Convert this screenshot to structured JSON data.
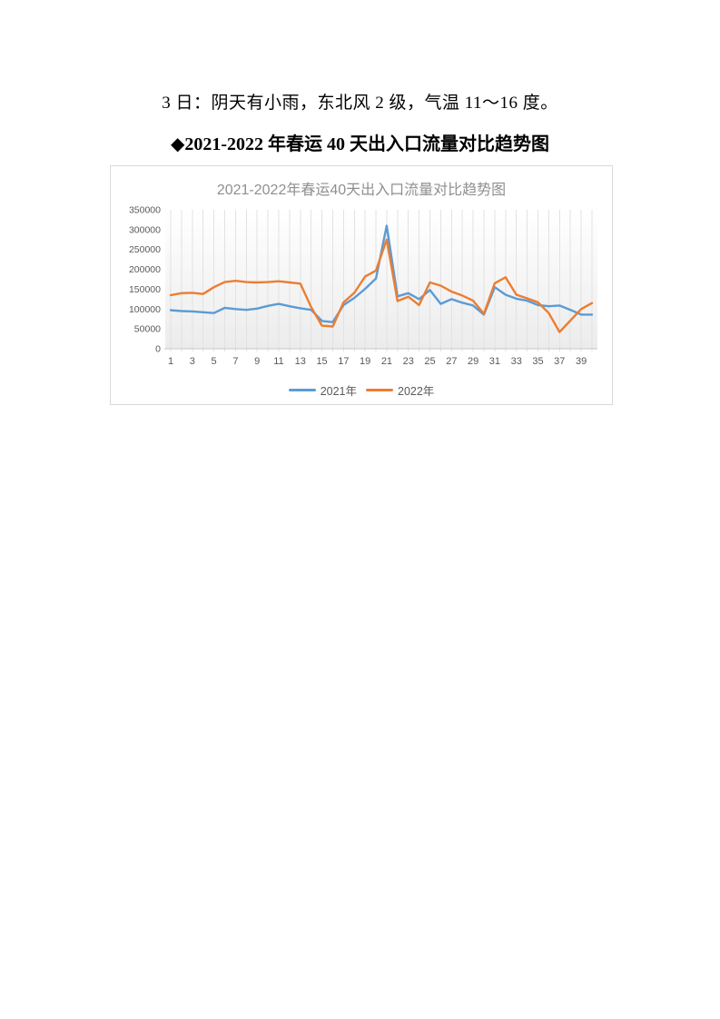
{
  "document": {
    "weather_text": "3 日：阴天有小雨，东北风 2 级，气温 11～16 度。",
    "chart_heading": "◆2021-2022 年春运 40 天出入口流量对比趋势图"
  },
  "chart_data": {
    "type": "line",
    "title": "2021-2022年春运40天出入口流量对比趋势图",
    "xlabel": "",
    "ylabel": "",
    "x": [
      1,
      2,
      3,
      4,
      5,
      6,
      7,
      8,
      9,
      10,
      11,
      12,
      13,
      14,
      15,
      16,
      17,
      18,
      19,
      20,
      21,
      22,
      23,
      24,
      25,
      26,
      27,
      28,
      29,
      30,
      31,
      32,
      33,
      34,
      35,
      36,
      37,
      38,
      39,
      40
    ],
    "x_tick_labels": [
      1,
      3,
      5,
      7,
      9,
      11,
      13,
      15,
      17,
      19,
      21,
      23,
      25,
      27,
      29,
      31,
      33,
      35,
      37,
      39
    ],
    "ylim": [
      0,
      350000
    ],
    "y_ticks": [
      350000,
      300000,
      250000,
      200000,
      150000,
      100000,
      50000,
      0
    ],
    "grid": "vertical",
    "legend_position": "bottom",
    "series": [
      {
        "name": "2021年",
        "color": "#5B9BD5",
        "values": [
          97000,
          95000,
          94000,
          92000,
          90000,
          103000,
          100000,
          98000,
          101000,
          108000,
          113000,
          107000,
          102000,
          98000,
          70000,
          67000,
          110000,
          128000,
          151000,
          177000,
          310000,
          132000,
          140000,
          125000,
          148000,
          113000,
          125000,
          116000,
          109000,
          86000,
          155000,
          136000,
          126000,
          121000,
          110000,
          107000,
          109000,
          98000,
          86000,
          86000
        ]
      },
      {
        "name": "2022年",
        "color": "#ED7D31",
        "values": [
          135000,
          140000,
          141000,
          138000,
          155000,
          168000,
          171000,
          168000,
          167000,
          168000,
          170000,
          167000,
          164000,
          105000,
          58000,
          56000,
          117000,
          141000,
          182000,
          197000,
          275000,
          120000,
          131000,
          110000,
          167000,
          159000,
          144000,
          134000,
          121000,
          88000,
          165000,
          180000,
          136000,
          127000,
          117000,
          90000,
          42000,
          71000,
          100000,
          115000
        ]
      }
    ],
    "style": {
      "title_color": "#8f8f8f",
      "tick_color": "#595959",
      "gridline_color": "#e2e2e2",
      "axis_color": "#c6c6c6",
      "frame_border_color": "#d9d9d9"
    }
  }
}
